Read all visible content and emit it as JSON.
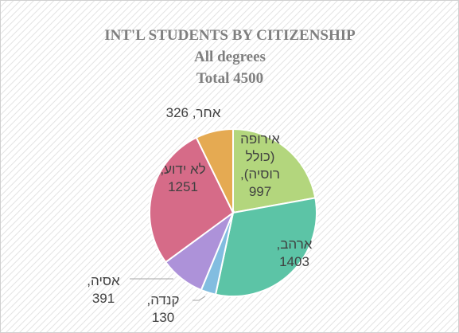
{
  "chart_data": {
    "type": "pie",
    "title": "INT'L STUDENTS BY CITIZENSHIP",
    "subtitle": "All degrees",
    "annotation": "Total 4500",
    "categories": [
      "אירופה (כולל רוסיה)",
      "ארהב",
      "קנדה",
      "אסיה",
      "לא ידוע",
      "אחר"
    ],
    "values": [
      997,
      1403,
      130,
      391,
      1251,
      326
    ],
    "value_labels": [
      "אירופה (כולל רוסיה), 997",
      "ארהב, 1403",
      "קנדה, 130",
      "אסיה, 391",
      "לא ידוע, 1251",
      "אחר, 326"
    ],
    "colors": [
      "#b3d67d",
      "#5cc4a6",
      "#82bde0",
      "#ad92d9",
      "#d66b88",
      "#e5aa52"
    ]
  }
}
